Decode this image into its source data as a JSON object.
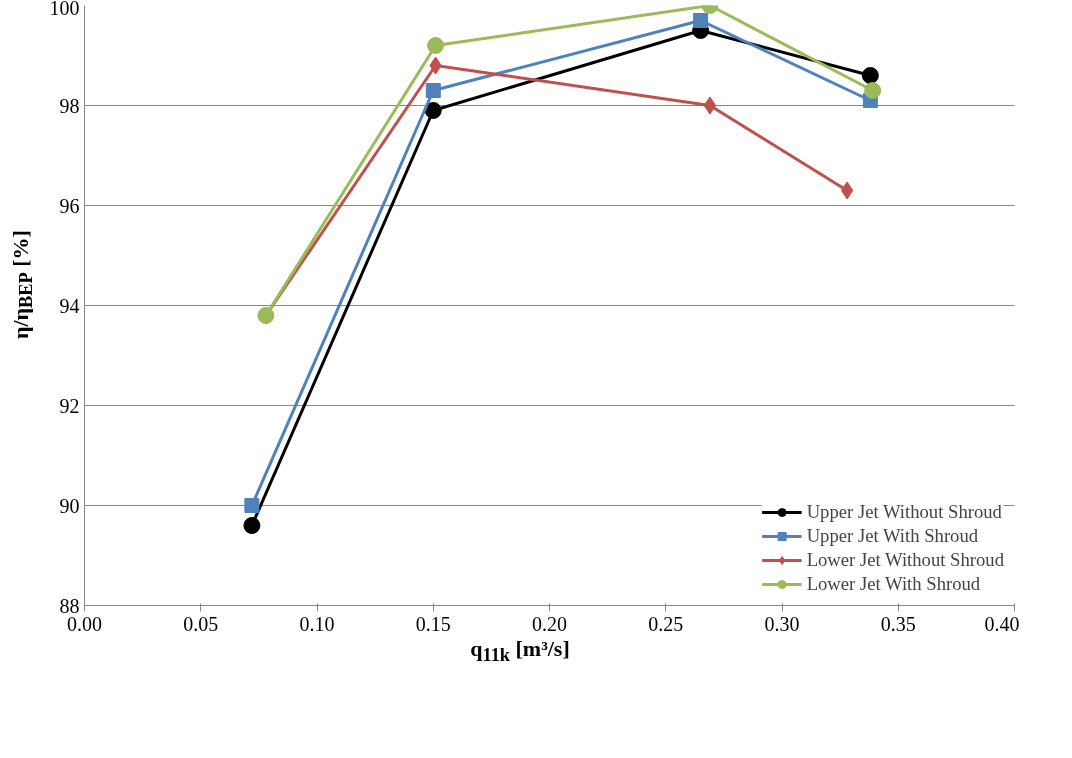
{
  "chart_data": {
    "type": "line",
    "xlabel": "q$_{11k}$ [m³/s]",
    "ylabel": "η/η$_{BEP}$ [%]",
    "xlim": [
      0,
      0.4
    ],
    "xticks": [
      {
        "value": 0,
        "label": "0.00"
      },
      {
        "value": 0.05,
        "label": "0.05"
      },
      {
        "value": 0.1,
        "label": "0.10"
      },
      {
        "value": 0.15,
        "label": "0.15"
      },
      {
        "value": 0.2,
        "label": "0.20"
      },
      {
        "value": 0.25,
        "label": "0.25"
      },
      {
        "value": 0.3,
        "label": "0.30"
      },
      {
        "value": 0.35,
        "label": "0.35"
      },
      {
        "value": 0.4,
        "label": "0.40"
      }
    ],
    "ylim": [
      88,
      100
    ],
    "yticks": [
      88,
      90,
      92,
      94,
      96,
      98,
      100
    ],
    "grid": "y",
    "legend": "bottom right",
    "series": [
      {
        "name": "Upper Jet Without Shroud",
        "color": "#000000",
        "marker": "circle",
        "x": [
          0.072,
          0.15,
          0.265,
          0.338
        ],
        "values": [
          89.6,
          97.9,
          99.5,
          98.6
        ]
      },
      {
        "name": "Upper Jet With Shroud",
        "color": "#4f81bd",
        "marker": "square",
        "x": [
          0.072,
          0.15,
          0.265,
          0.338
        ],
        "values": [
          90.0,
          98.3,
          99.7,
          98.1
        ]
      },
      {
        "name": "Lower Jet Without Shroud",
        "color": "#c0504d",
        "marker": "diamond",
        "x": [
          0.078,
          0.151,
          0.269,
          0.328
        ],
        "values": [
          93.8,
          98.8,
          98.0,
          96.3
        ]
      },
      {
        "name": "Lower Jet With Shroud",
        "color": "#9bbb59",
        "marker": "circle",
        "x": [
          0.078,
          0.151,
          0.269,
          0.339
        ],
        "values": [
          93.8,
          99.2,
          100.0,
          98.3
        ]
      }
    ]
  }
}
